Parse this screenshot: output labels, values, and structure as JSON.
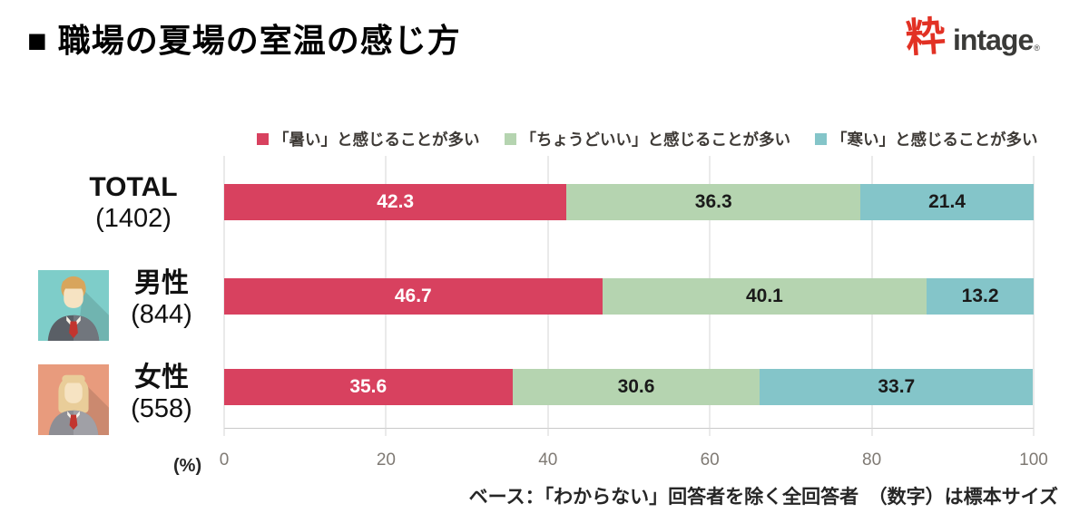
{
  "header": {
    "title": "■ 職場の夏場の室温の感じ方",
    "logo_mark": "粋",
    "logo_text": "intage",
    "logo_reg": "®",
    "logo_mark_color": "#e23124",
    "logo_text_color": "#3a3a38"
  },
  "chart_data": {
    "type": "bar",
    "stacked": true,
    "orientation": "horizontal",
    "title": "職場の夏場の室温の感じ方",
    "xlabel": "(%)",
    "xlim": [
      0,
      100
    ],
    "x_ticks": [
      0,
      20,
      40,
      60,
      80,
      100
    ],
    "grid": true,
    "legend_position": "top",
    "categories": [
      "TOTAL",
      "男性",
      "女性"
    ],
    "category_sizes": [
      "(1402)",
      "(844)",
      "(558)"
    ],
    "row_icons": [
      null,
      "male-avatar",
      "female-avatar"
    ],
    "series": [
      {
        "name": "「暑い」と感じることが多い",
        "color": "#d8415f",
        "value_label_color": "#ffffff",
        "values": [
          42.3,
          46.7,
          35.6
        ]
      },
      {
        "name": "「ちょうどいい」と感じることが多い",
        "color": "#b5d4b0",
        "value_label_color": "#1a1a1a",
        "values": [
          36.3,
          40.1,
          30.6
        ]
      },
      {
        "name": "「寒い」と感じることが多い",
        "color": "#84c5c9",
        "value_label_color": "#1a1a1a",
        "values": [
          21.4,
          13.2,
          33.7
        ]
      }
    ]
  },
  "avatars": {
    "male": {
      "bg": "#7ecdc9",
      "hair": "#d8a55c",
      "skin": "#f6e3c2",
      "suit": "#5a5f66",
      "suit2": "#71767d",
      "shirt": "#f5f1e6",
      "tie": "#c2352f"
    },
    "female": {
      "bg": "#e89b7d",
      "hair": "#e9cd99",
      "skin": "#f6e3c2",
      "suit": "#8e8e94",
      "suit2": "#a0a0a6",
      "shirt": "#f7f4ec",
      "tie": "#c2352f"
    }
  },
  "footnote": "ベース：「わからない」回答者を除く全回答者　（数字）は標本サイズ"
}
